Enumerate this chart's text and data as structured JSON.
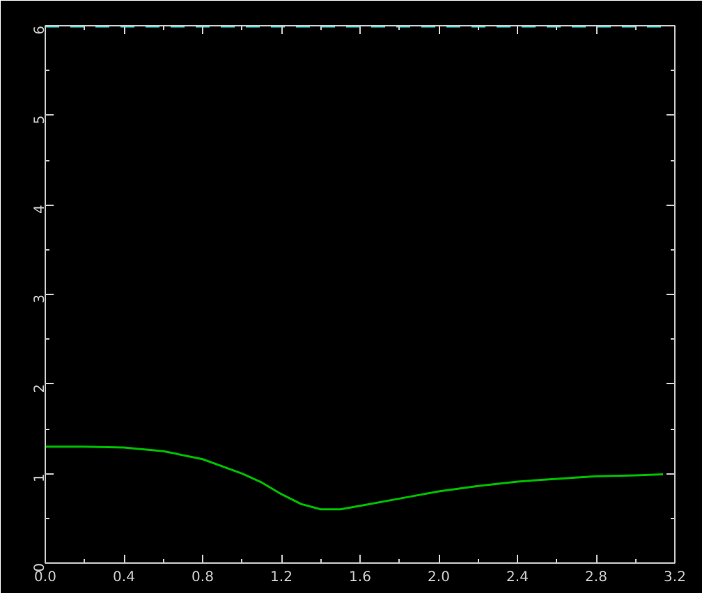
{
  "chart_data": {
    "type": "line",
    "x": [
      0,
      0.2,
      0.4,
      0.6,
      0.8,
      1.0,
      1.1,
      1.2,
      1.3,
      1.4,
      1.5,
      1.6,
      1.8,
      2.0,
      2.2,
      2.4,
      2.6,
      2.8,
      3.0,
      3.14
    ],
    "series": [
      {
        "color": "#00c000",
        "values": [
          1.3,
          1.3,
          1.29,
          1.25,
          1.16,
          1.0,
          0.9,
          0.77,
          0.66,
          0.6,
          0.6,
          0.64,
          0.72,
          0.8,
          0.86,
          0.91,
          0.94,
          0.97,
          0.98,
          0.99
        ]
      },
      {
        "color": "#40e0e0",
        "line_style": "dashed",
        "x": [
          0,
          3.14
        ],
        "values": [
          6,
          6
        ]
      }
    ],
    "xlim": [
      0,
      3.2
    ],
    "ylim": [
      0,
      6
    ],
    "xticks": [
      {
        "value": 0,
        "label": "0.0"
      },
      0.4,
      0.8,
      1.2,
      1.6,
      {
        "value": 2,
        "label": "2.0"
      },
      2.4,
      2.8,
      3.2
    ],
    "yticks": [
      0,
      1,
      2,
      3,
      4,
      5,
      6
    ],
    "grid": false,
    "marker": "none",
    "line_style": "solid"
  }
}
